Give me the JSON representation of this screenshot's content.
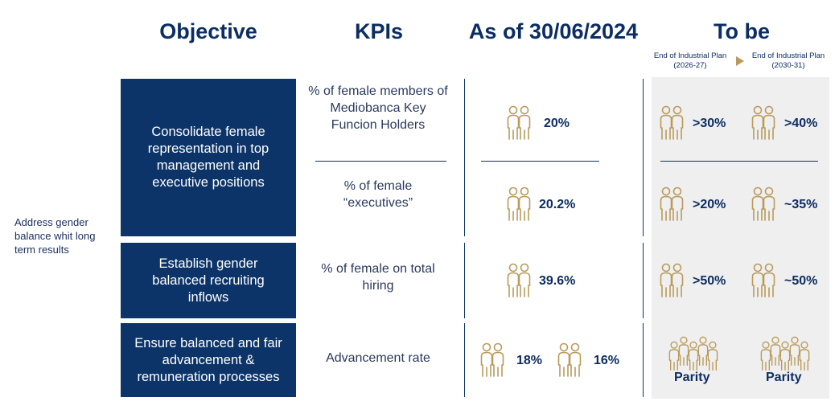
{
  "headers": {
    "objective": "Objective",
    "kpis": "KPIs",
    "as_of": "As of 30/06/2024",
    "to_be": "To be",
    "plan_1": "End of Industrial Plan (2026-27)",
    "plan_2": "End of Industrial Plan (2030-31)"
  },
  "side_label": "Address gender balance whit long term results",
  "rows": [
    {
      "objective": "Consolidate female representation in  top management and executive positions",
      "kpis": [
        {
          "label": "% of female  members of Mediobanca Key Funcion Holders",
          "current": "20%",
          "target_1": ">30%",
          "target_2": ">40%"
        },
        {
          "label": "% of female “executives”",
          "current": "20.2%",
          "target_1": ">20%",
          "target_2": "~35%"
        }
      ]
    },
    {
      "objective": "Establish gender balanced recruiting inflows",
      "kpis": [
        {
          "label": "% of female on total hiring",
          "current": "39.6%",
          "target_1": ">50%",
          "target_2": "~50%"
        }
      ]
    },
    {
      "objective": "Ensure balanced and fair advancement & remuneration processes",
      "kpis": [
        {
          "label": "Advancement rate",
          "current_a": "18%",
          "current_b": "16%",
          "target_1": "Parity",
          "target_2": "Parity"
        }
      ]
    }
  ],
  "icons": {
    "people_pair": "people-pair-icon",
    "people_group": "people-group-icon",
    "arrow": "triangle-arrow-icon"
  },
  "colors": {
    "navy": "#0c3468",
    "gold": "#b99a5b",
    "gray_bg": "#efefef"
  }
}
